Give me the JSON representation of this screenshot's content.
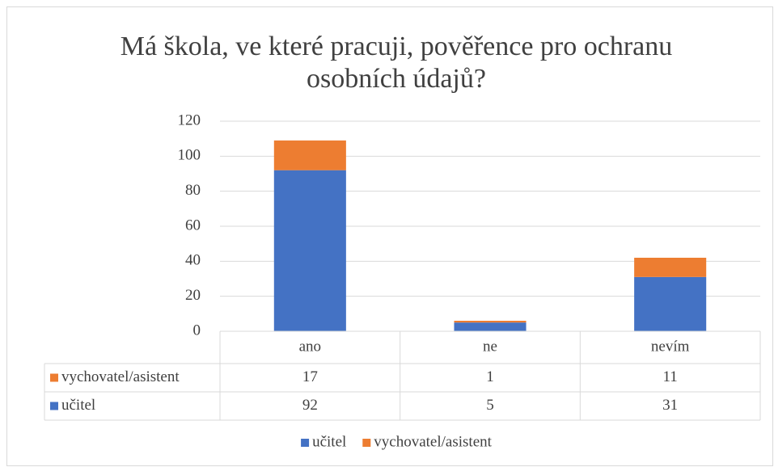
{
  "chart_data": {
    "type": "bar",
    "stacked": true,
    "title": [
      "Má škola, ve které pracuji, pověřence pro ochranu",
      "osobních údajů?"
    ],
    "categories": [
      "ano",
      "ne",
      "nevím"
    ],
    "series": [
      {
        "name": "učitel",
        "color": "#4472c4",
        "values": [
          92,
          5,
          31
        ]
      },
      {
        "name": "vychovatel/asistent",
        "color": "#ed7d31",
        "values": [
          17,
          1,
          11
        ]
      }
    ],
    "ylim": [
      0,
      120
    ],
    "yticks": [
      0,
      20,
      40,
      60,
      80,
      100,
      120
    ],
    "grid": true,
    "data_table": true,
    "legend": "bottom"
  }
}
